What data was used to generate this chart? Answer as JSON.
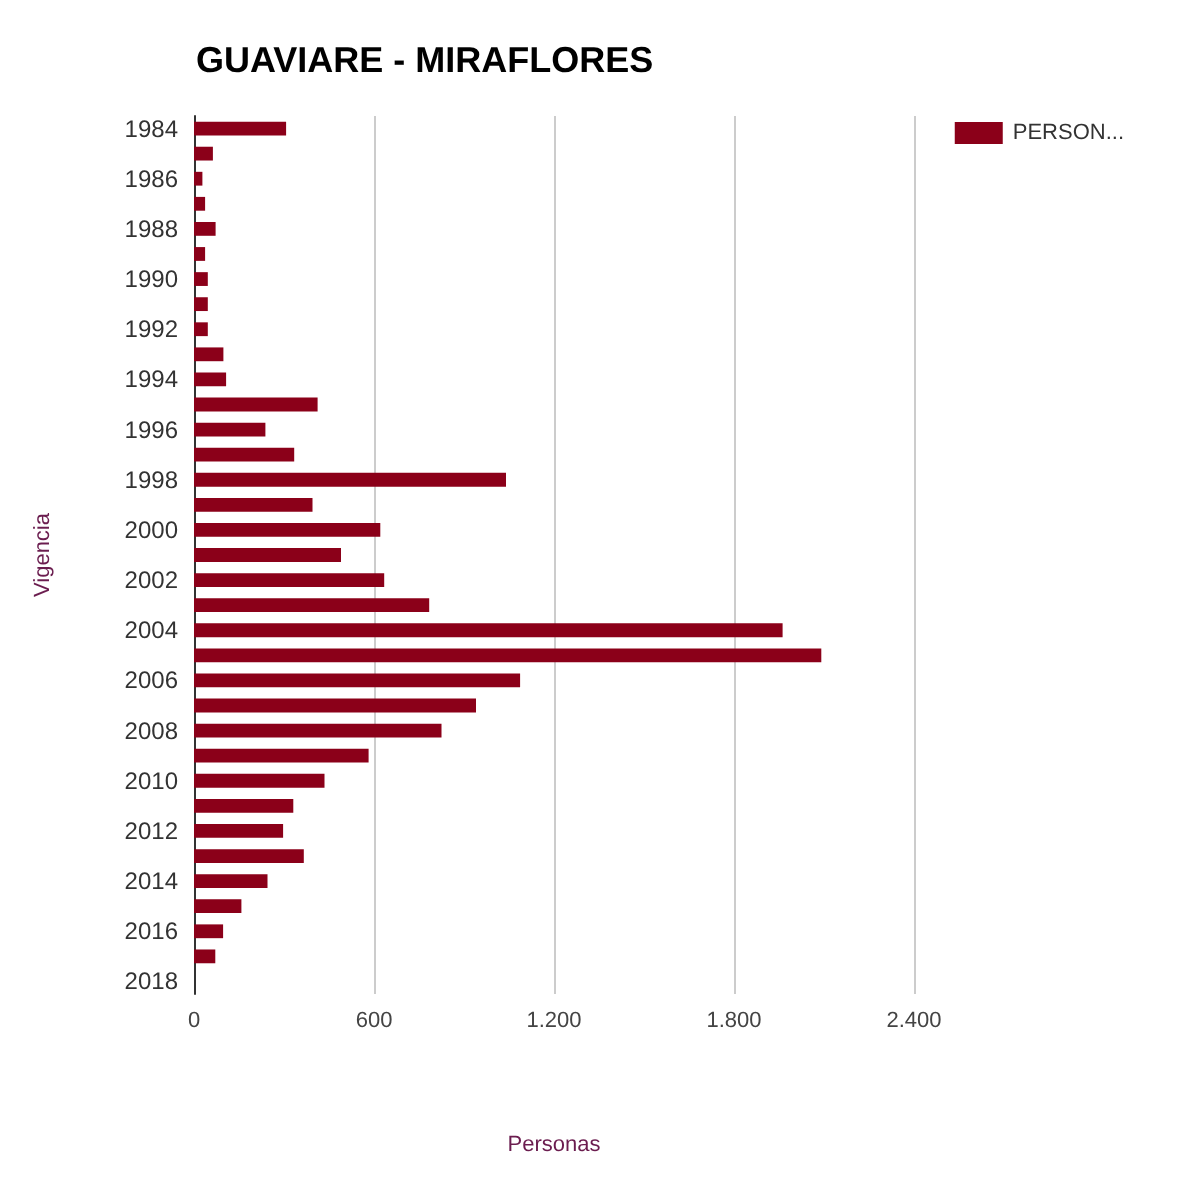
{
  "chart_data": {
    "type": "bar",
    "orientation": "horizontal",
    "title": "GUAVIARE - MIRAFLORES",
    "xlabel": "Personas",
    "ylabel": "Vigencia",
    "categories": [
      "1984",
      null,
      "1986",
      null,
      "1988",
      null,
      "1990",
      null,
      "1992",
      null,
      "1994",
      null,
      "1996",
      null,
      "1998",
      null,
      "2000",
      null,
      "2002",
      null,
      "2004",
      null,
      "2006",
      null,
      "2008",
      null,
      "2010",
      null,
      "2012",
      null,
      "2014",
      null,
      "2016",
      null,
      "2018"
    ],
    "series": [
      {
        "name": "PERSON...",
        "color": "#8b0019",
        "values": [
          307,
          63,
          28,
          37,
          72,
          37,
          46,
          46,
          46,
          98,
          107,
          412,
          238,
          334,
          1040,
          395,
          621,
          490,
          634,
          784,
          1962,
          2091,
          1087,
          940,
          825,
          582,
          435,
          331,
          297,
          366,
          245,
          158,
          97,
          71,
          0
        ]
      }
    ],
    "xlim": [
      0,
      2400
    ],
    "xticks": [
      0,
      600,
      {
        "value": 1200,
        "label": "1.200"
      },
      {
        "value": 1800,
        "label": "1.800"
      },
      {
        "value": 2400,
        "label": "2.400"
      }
    ],
    "grid": "x",
    "legend": "top right"
  }
}
